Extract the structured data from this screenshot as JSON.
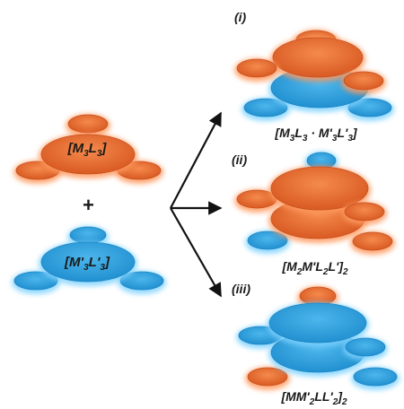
{
  "colors": {
    "orange_fill": "#e8733a",
    "orange_dark": "#c85020",
    "orange_glow": "#ff9a5e",
    "blue_fill": "#3aa7e0",
    "blue_dark": "#1f86c4",
    "blue_glow": "#7fd3ff",
    "arrow": "#111111"
  },
  "reactants": {
    "orange_label": {
      "pre": "[M",
      "s1": "3",
      "mid": "L",
      "s2": "3",
      "post": "]"
    },
    "plus": "+",
    "blue_label": {
      "pre": "[M'",
      "s1": "3",
      "mid": "L'",
      "s2": "3",
      "post": "]"
    }
  },
  "products": [
    {
      "roman": "(i)",
      "formula": [
        {
          "t": "[M"
        },
        {
          "sub": "3"
        },
        {
          "t": "L"
        },
        {
          "sub": "3"
        },
        {
          "t": " · M'"
        },
        {
          "sub": "3"
        },
        {
          "t": "L'"
        },
        {
          "sub": "3"
        },
        {
          "t": "]"
        }
      ]
    },
    {
      "roman": "(ii)",
      "formula": [
        {
          "t": "[M"
        },
        {
          "sub": "2"
        },
        {
          "t": "M'L"
        },
        {
          "sub": "2"
        },
        {
          "t": "L']"
        },
        {
          "sub": "2"
        }
      ]
    },
    {
      "roman": "(iii)",
      "formula": [
        {
          "t": "[MM'"
        },
        {
          "sub": "2"
        },
        {
          "t": "LL'"
        },
        {
          "sub": "2"
        },
        {
          "t": "]"
        },
        {
          "sub": "2"
        }
      ]
    }
  ]
}
